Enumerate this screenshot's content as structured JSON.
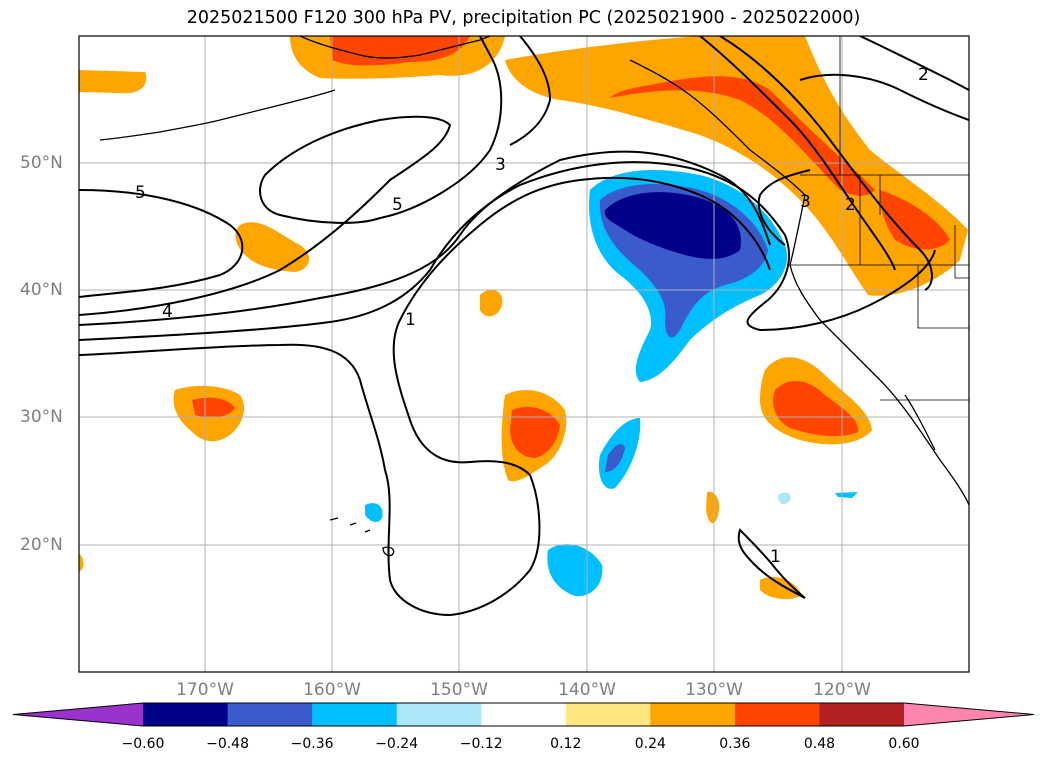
{
  "title": "2025021500 F120 300 hPa PV, precipitation PC (2025021900 - 2025022000)",
  "axes": {
    "lon_labels": [
      "170°W",
      "160°W",
      "150°W",
      "140°W",
      "130°W",
      "120°W"
    ],
    "lat_labels": [
      "50°N",
      "40°N",
      "30°N",
      "20°N"
    ]
  },
  "contour_labels": [
    "5",
    "5",
    "4",
    "3",
    "1",
    "1",
    "2",
    "2",
    "3"
  ],
  "colorbar": {
    "ticks": [
      "−0.60",
      "−0.48",
      "−0.36",
      "−0.24",
      "−0.12",
      "0.12",
      "0.24",
      "0.36",
      "0.48",
      "0.60"
    ],
    "colors": [
      "#9933cc",
      "#00008b",
      "#3a5bcc",
      "#00bfff",
      "#ade5fb",
      "#ffffff",
      "#ffe680",
      "#ffa500",
      "#ff4500",
      "#b22222",
      "#ff85b0"
    ]
  },
  "colors": {
    "gridline": "#b0b0b0",
    "contour": "#000000"
  }
}
